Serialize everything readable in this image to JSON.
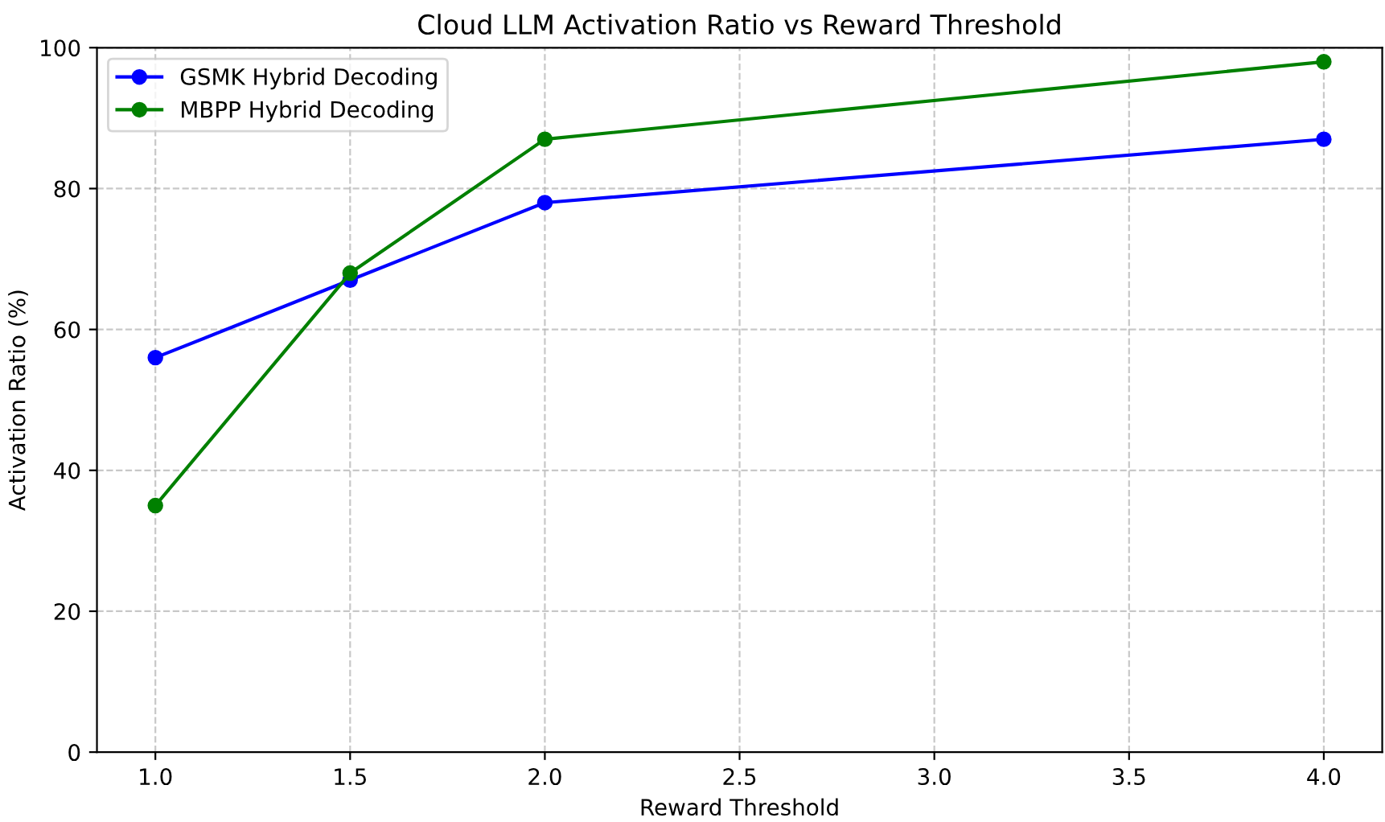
{
  "chart_data": {
    "type": "line",
    "title": "Cloud LLM Activation Ratio vs Reward Threshold",
    "xlabel": "Reward Threshold",
    "ylabel": "Activation Ratio (%)",
    "x": [
      1.0,
      1.5,
      2.0,
      4.0
    ],
    "series": [
      {
        "name": "GSMK Hybrid Decoding",
        "color": "#0000ff",
        "values": [
          56,
          67,
          78,
          87
        ]
      },
      {
        "name": "MBPP Hybrid Decoding",
        "color": "#008000",
        "values": [
          35,
          68,
          87,
          98
        ]
      }
    ],
    "xlim": [
      0.85,
      4.15
    ],
    "xticks": [
      {
        "value": 1.0,
        "label": "1.0"
      },
      {
        "value": 1.5,
        "label": "1.5"
      },
      {
        "value": 2.0,
        "label": "2.0"
      },
      {
        "value": 2.5,
        "label": "2.5"
      },
      {
        "value": 3.0,
        "label": "3.0"
      },
      {
        "value": 3.5,
        "label": "3.5"
      },
      {
        "value": 4.0,
        "label": "4.0"
      }
    ],
    "ylim": [
      0,
      100
    ],
    "yticks": [
      0,
      20,
      40,
      60,
      80,
      100
    ],
    "grid": true,
    "legend": "top left",
    "marker": "circle",
    "line_style": "solid"
  }
}
